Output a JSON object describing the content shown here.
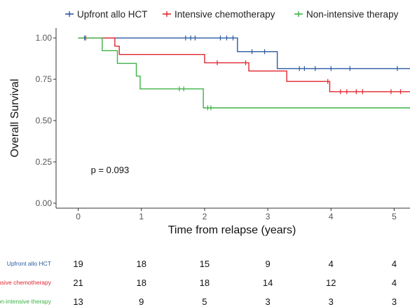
{
  "chart_data": {
    "type": "line",
    "subtype": "kaplan-meier step",
    "title": "",
    "xlabel": "Time from relapse (years)",
    "ylabel": "Overall Survival",
    "xlim": [
      -0.35,
      5.25
    ],
    "ylim": [
      -0.03,
      1.06
    ],
    "x_ticks": [
      0,
      1,
      2,
      3,
      4,
      5
    ],
    "y_ticks": [
      0.0,
      0.25,
      0.5,
      0.75,
      1.0
    ],
    "x_tick_labels": [
      "0",
      "1",
      "2",
      "3",
      "4",
      "5"
    ],
    "y_tick_labels": [
      "0.00",
      "0.25",
      "0.50",
      "0.75",
      "1.00"
    ],
    "grid": false,
    "legend_position": "top",
    "annotation": "p = 0.093",
    "annotation_pos": {
      "x": 0.2,
      "y": 0.2
    },
    "series": [
      {
        "name": "Upfront allo HCT",
        "color": "#2a5aa0",
        "steps": [
          [
            0,
            1.0
          ],
          [
            2.52,
            0.917
          ],
          [
            3.15,
            0.815
          ]
        ],
        "end_x": 5.25,
        "censor_times": [
          0.1,
          1.7,
          1.78,
          1.85,
          2.25,
          2.35,
          2.45,
          2.75,
          2.95,
          3.5,
          3.58,
          3.75,
          4.0,
          4.3,
          5.05
        ]
      },
      {
        "name": "Intensive chemotherapy",
        "color": "#e0262e",
        "steps": [
          [
            0,
            1.0
          ],
          [
            0.58,
            0.95
          ],
          [
            0.65,
            0.9
          ],
          [
            2.0,
            0.85
          ],
          [
            2.7,
            0.8
          ],
          [
            3.3,
            0.737
          ],
          [
            3.98,
            0.675
          ]
        ],
        "end_x": 5.25,
        "censor_times": [
          0.12,
          2.2,
          2.65,
          3.95,
          4.15,
          4.25,
          4.4,
          4.5,
          4.95,
          5.1
        ]
      },
      {
        "name": "Non-intensive therapy",
        "color": "#3cb346",
        "steps": [
          [
            0,
            1.0
          ],
          [
            0.38,
            0.923
          ],
          [
            0.62,
            0.846
          ],
          [
            0.92,
            0.769
          ],
          [
            0.98,
            0.692
          ],
          [
            1.98,
            0.577
          ]
        ],
        "end_x": 5.25,
        "censor_times": [
          1.6,
          1.67,
          2.05,
          2.1
        ]
      }
    ],
    "risk_table": {
      "times": [
        0,
        1,
        2,
        3,
        4,
        5
      ],
      "rows": [
        {
          "label": "Upfront allo HCT",
          "color": "#2a5aa0",
          "counts": [
            19,
            18,
            15,
            9,
            4,
            4
          ]
        },
        {
          "label": "Intensive chemotherapy",
          "color": "#e0262e",
          "counts": [
            21,
            18,
            18,
            14,
            12,
            4
          ]
        },
        {
          "label": "Non-intensive therapy",
          "color": "#3cb346",
          "counts": [
            13,
            9,
            5,
            3,
            3,
            3
          ]
        }
      ]
    }
  }
}
